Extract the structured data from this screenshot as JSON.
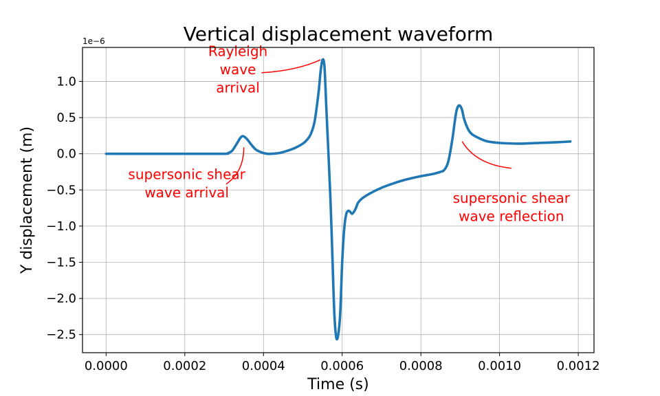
{
  "chart_data": {
    "type": "line",
    "title": "Vertical displacement waveform",
    "xlabel": "Time (s)",
    "ylabel": "Y displacement (m)",
    "y_offset_label": "1e−6",
    "xlim": [
      -6e-05,
      0.00124
    ],
    "ylim": [
      -2.75,
      1.47
    ],
    "grid": true,
    "line_color": "#1f77b4",
    "annotation_color": "#ff0000",
    "x_ticks": [
      {
        "value": 0.0,
        "label": "0.0000"
      },
      {
        "value": 0.0002,
        "label": "0.0002"
      },
      {
        "value": 0.0004,
        "label": "0.0004"
      },
      {
        "value": 0.0006,
        "label": "0.0006"
      },
      {
        "value": 0.0008,
        "label": "0.0008"
      },
      {
        "value": 0.001,
        "label": "0.0010"
      },
      {
        "value": 0.0012,
        "label": "0.0012"
      }
    ],
    "y_ticks": [
      {
        "value": 1.0,
        "label": "1.0"
      },
      {
        "value": 0.5,
        "label": "0.5"
      },
      {
        "value": 0.0,
        "label": "0.0"
      },
      {
        "value": -0.5,
        "label": "−0.5"
      },
      {
        "value": -1.0,
        "label": "−1.0"
      },
      {
        "value": -1.5,
        "label": "−1.5"
      },
      {
        "value": -2.0,
        "label": "−2.0"
      },
      {
        "value": -2.5,
        "label": "−2.5"
      }
    ],
    "series": [
      {
        "name": "Y displacement",
        "points": [
          [
            0.0,
            0.0
          ],
          [
            0.0001,
            0.0
          ],
          [
            0.0002,
            0.0
          ],
          [
            0.0003,
            0.0
          ],
          [
            0.00031,
            0.01
          ],
          [
            0.00032,
            0.04
          ],
          [
            0.00033,
            0.12
          ],
          [
            0.00034,
            0.21
          ],
          [
            0.000345,
            0.24
          ],
          [
            0.00035,
            0.24
          ],
          [
            0.000355,
            0.22
          ],
          [
            0.00036,
            0.19
          ],
          [
            0.00037,
            0.12
          ],
          [
            0.00038,
            0.06
          ],
          [
            0.00039,
            0.03
          ],
          [
            0.0004,
            0.01
          ],
          [
            0.00041,
            0.0
          ],
          [
            0.00042,
            0.0
          ],
          [
            0.00044,
            0.01
          ],
          [
            0.00046,
            0.04
          ],
          [
            0.00048,
            0.08
          ],
          [
            0.0005,
            0.14
          ],
          [
            0.00051,
            0.19
          ],
          [
            0.00052,
            0.27
          ],
          [
            0.00053,
            0.45
          ],
          [
            0.00054,
            0.85
          ],
          [
            0.000545,
            1.13
          ],
          [
            0.00055,
            1.3
          ],
          [
            0.000555,
            1.2
          ],
          [
            0.00056,
            0.6
          ],
          [
            0.00057,
            -0.6
          ],
          [
            0.000575,
            -1.4
          ],
          [
            0.00058,
            -2.2
          ],
          [
            0.000585,
            -2.54
          ],
          [
            0.00059,
            -2.5
          ],
          [
            0.000595,
            -2.2
          ],
          [
            0.0006,
            -1.5
          ],
          [
            0.000605,
            -1.05
          ],
          [
            0.00061,
            -0.84
          ],
          [
            0.000615,
            -0.79
          ],
          [
            0.00062,
            -0.8
          ],
          [
            0.000625,
            -0.83
          ],
          [
            0.00063,
            -0.8
          ],
          [
            0.000635,
            -0.75
          ],
          [
            0.00064,
            -0.68
          ],
          [
            0.00065,
            -0.62
          ],
          [
            0.00067,
            -0.55
          ],
          [
            0.0007,
            -0.47
          ],
          [
            0.00073,
            -0.41
          ],
          [
            0.00076,
            -0.36
          ],
          [
            0.0008,
            -0.31
          ],
          [
            0.00083,
            -0.28
          ],
          [
            0.00085,
            -0.25
          ],
          [
            0.00086,
            -0.22
          ],
          [
            0.00087,
            -0.1
          ],
          [
            0.00088,
            0.2
          ],
          [
            0.000885,
            0.4
          ],
          [
            0.00089,
            0.58
          ],
          [
            0.000895,
            0.66
          ],
          [
            0.0009,
            0.66
          ],
          [
            0.000905,
            0.6
          ],
          [
            0.00091,
            0.48
          ],
          [
            0.00092,
            0.34
          ],
          [
            0.00093,
            0.27
          ],
          [
            0.00095,
            0.21
          ],
          [
            0.00097,
            0.17
          ],
          [
            0.001,
            0.15
          ],
          [
            0.00105,
            0.14
          ],
          [
            0.0011,
            0.15
          ],
          [
            0.00115,
            0.16
          ],
          [
            0.00118,
            0.17
          ]
        ]
      }
    ],
    "annotations": [
      {
        "lines": [
          "Rayleigh",
          "wave",
          "arrival"
        ],
        "target": [
          0.000545,
          1.3
        ],
        "text_pos": [
          0.000335,
          1.35
        ],
        "anchor": "middle",
        "curve": [
          [
            0.000395,
            1.12
          ],
          [
            0.000485,
            1.15
          ],
          [
            0.000545,
            1.3
          ]
        ]
      },
      {
        "lines": [
          "supersonic shear",
          "wave arrival"
        ],
        "target": [
          0.00035,
          0.09
        ],
        "text_pos": [
          0.000205,
          -0.35
        ],
        "anchor": "middle",
        "curve": [
          [
            0.000305,
            -0.42
          ],
          [
            0.00035,
            -0.25
          ],
          [
            0.00035,
            0.09
          ]
        ]
      },
      {
        "lines": [
          "supersonic shear",
          "wave reflection"
        ],
        "target": [
          0.000905,
          0.17
        ],
        "text_pos": [
          0.00103,
          -0.68
        ],
        "anchor": "middle",
        "curve": [
          [
            0.00103,
            -0.2
          ],
          [
            0.00094,
            -0.15
          ],
          [
            0.000905,
            0.17
          ]
        ]
      }
    ]
  }
}
